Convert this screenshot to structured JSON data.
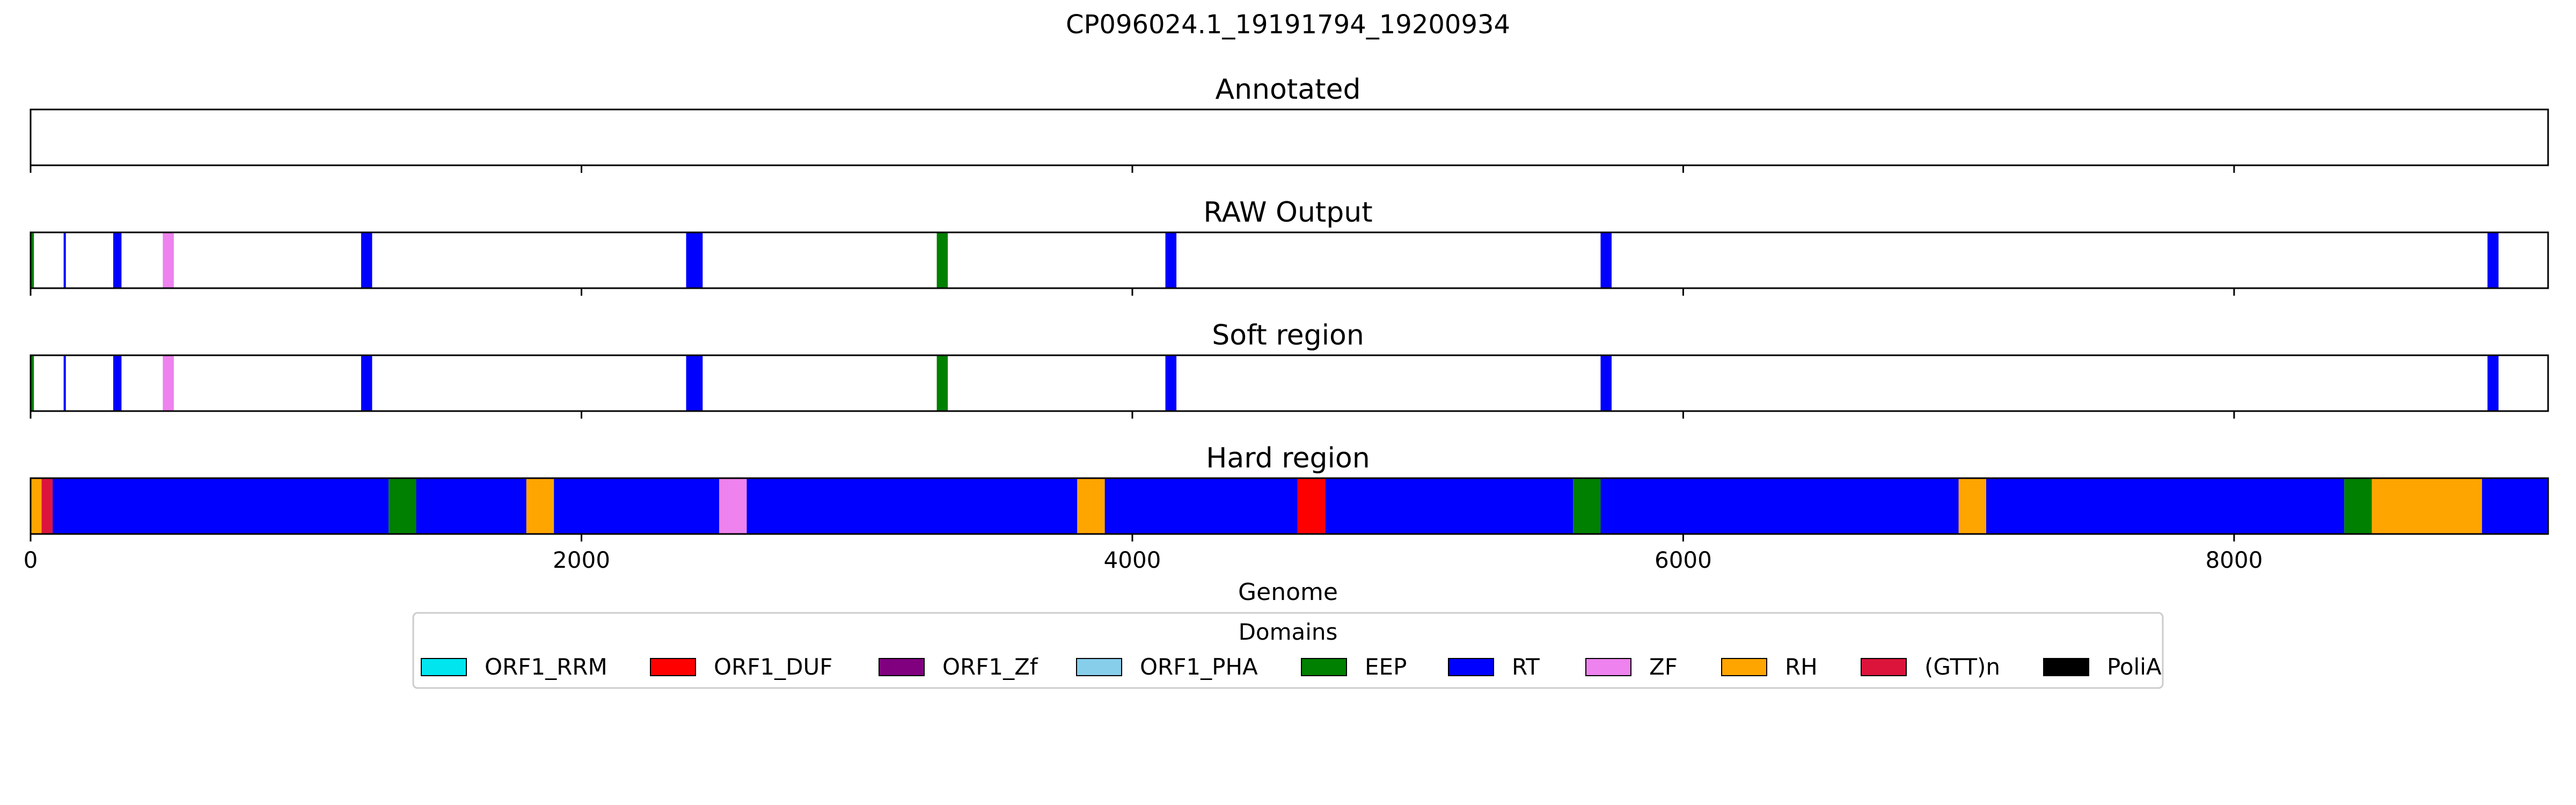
{
  "chart_data": {
    "type": "bar",
    "title": "CP096024.1_19191794_19200934",
    "xlabel": "Genome",
    "xlim": [
      0,
      9140
    ],
    "xticks": [
      0,
      2000,
      4000,
      6000,
      8000
    ],
    "tick_labels": [
      "0",
      "2000",
      "4000",
      "6000",
      "8000"
    ],
    "panels": [
      {
        "title": "Annotated",
        "segments": []
      },
      {
        "title": "RAW Output",
        "segments": [
          {
            "start": 0,
            "end": 12,
            "domain": "EEP"
          },
          {
            "start": 120,
            "end": 128,
            "domain": "RT"
          },
          {
            "start": 300,
            "end": 330,
            "domain": "RT"
          },
          {
            "start": 480,
            "end": 520,
            "domain": "ZF"
          },
          {
            "start": 1200,
            "end": 1240,
            "domain": "RT"
          },
          {
            "start": 2380,
            "end": 2440,
            "domain": "RT"
          },
          {
            "start": 3290,
            "end": 3330,
            "domain": "EEP"
          },
          {
            "start": 4120,
            "end": 4160,
            "domain": "RT"
          },
          {
            "start": 5700,
            "end": 5740,
            "domain": "RT"
          },
          {
            "start": 8920,
            "end": 8960,
            "domain": "RT"
          }
        ]
      },
      {
        "title": "Soft region",
        "segments": [
          {
            "start": 0,
            "end": 12,
            "domain": "EEP"
          },
          {
            "start": 120,
            "end": 128,
            "domain": "RT"
          },
          {
            "start": 300,
            "end": 330,
            "domain": "RT"
          },
          {
            "start": 480,
            "end": 520,
            "domain": "ZF"
          },
          {
            "start": 1200,
            "end": 1240,
            "domain": "RT"
          },
          {
            "start": 2380,
            "end": 2440,
            "domain": "RT"
          },
          {
            "start": 3290,
            "end": 3330,
            "domain": "EEP"
          },
          {
            "start": 4120,
            "end": 4160,
            "domain": "RT"
          },
          {
            "start": 5700,
            "end": 5740,
            "domain": "RT"
          },
          {
            "start": 8920,
            "end": 8960,
            "domain": "RT"
          }
        ]
      },
      {
        "title": "Hard region",
        "segments": [
          {
            "start": 0,
            "end": 40,
            "domain": "RH"
          },
          {
            "start": 40,
            "end": 80,
            "domain": "(GTT)n"
          },
          {
            "start": 80,
            "end": 1300,
            "domain": "RT"
          },
          {
            "start": 1300,
            "end": 1400,
            "domain": "EEP"
          },
          {
            "start": 1400,
            "end": 1800,
            "domain": "RT"
          },
          {
            "start": 1800,
            "end": 1900,
            "domain": "RH"
          },
          {
            "start": 1900,
            "end": 2500,
            "domain": "RT"
          },
          {
            "start": 2500,
            "end": 2600,
            "domain": "ZF"
          },
          {
            "start": 2600,
            "end": 3800,
            "domain": "RT"
          },
          {
            "start": 3800,
            "end": 3900,
            "domain": "RH"
          },
          {
            "start": 3900,
            "end": 4600,
            "domain": "RT"
          },
          {
            "start": 4600,
            "end": 4700,
            "domain": "ORF1_DUF"
          },
          {
            "start": 4700,
            "end": 5600,
            "domain": "RT"
          },
          {
            "start": 5600,
            "end": 5700,
            "domain": "EEP"
          },
          {
            "start": 5700,
            "end": 7000,
            "domain": "RT"
          },
          {
            "start": 7000,
            "end": 7100,
            "domain": "RH"
          },
          {
            "start": 7100,
            "end": 8400,
            "domain": "RT"
          },
          {
            "start": 8400,
            "end": 8500,
            "domain": "EEP"
          },
          {
            "start": 8500,
            "end": 8900,
            "domain": "RH"
          },
          {
            "start": 8900,
            "end": 9140,
            "domain": "RT"
          }
        ]
      }
    ],
    "legend": {
      "title": "Domains",
      "placement": "bottom-center",
      "items": [
        {
          "label": "ORF1_RRM",
          "color": "#00e5ee"
        },
        {
          "label": "ORF1_DUF",
          "color": "#ff0000"
        },
        {
          "label": "ORF1_Zf",
          "color": "#800080"
        },
        {
          "label": "ORF1_PHA",
          "color": "#87ceeb"
        },
        {
          "label": "EEP",
          "color": "#008000"
        },
        {
          "label": "RT",
          "color": "#0000ff"
        },
        {
          "label": "ZF",
          "color": "#ee82ee"
        },
        {
          "label": "RH",
          "color": "#ffa500"
        },
        {
          "label": "(GTT)n",
          "color": "#dc143c"
        },
        {
          "label": "PoliA",
          "color": "#000000"
        }
      ]
    }
  }
}
